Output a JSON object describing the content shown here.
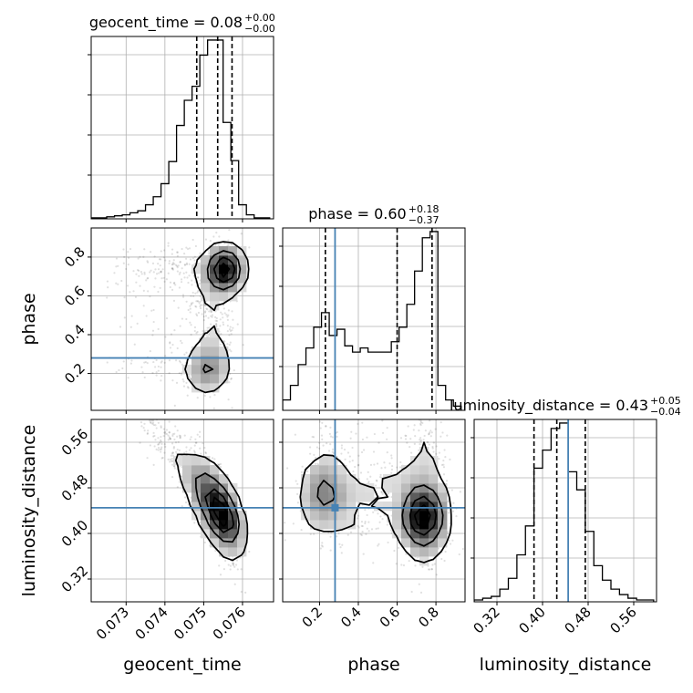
{
  "chart_data": {
    "type": "corner",
    "parameters": [
      "geocent_time",
      "phase",
      "luminosity_distance"
    ],
    "axis_labels": {
      "geocent_time": "geocent_time",
      "phase": "phase",
      "luminosity_distance": "luminosity_distance"
    },
    "ranges": {
      "geocent_time": [
        0.0721,
        0.0768
      ],
      "phase": [
        0.01,
        0.95
      ],
      "luminosity_distance": [
        0.28,
        0.6
      ]
    },
    "ticks": {
      "geocent_time": [
        0.073,
        0.074,
        0.075,
        0.076
      ],
      "phase": [
        0.2,
        0.4,
        0.6,
        0.8
      ],
      "luminosity_distance": [
        0.32,
        0.4,
        0.48,
        0.56
      ]
    },
    "tick_labels": {
      "geocent_time": [
        "0.073",
        "0.074",
        "0.075",
        "0.076"
      ],
      "phase": [
        "0.2",
        "0.4",
        "0.6",
        "0.8"
      ],
      "luminosity_distance": [
        "0.32",
        "0.40",
        "0.48",
        "0.56"
      ]
    },
    "titles": [
      {
        "param": "geocent_time",
        "base": "geocent_time = 0.08",
        "plus": "+0.00",
        "minus": "−0.00"
      },
      {
        "param": "phase",
        "base": "phase = 0.60",
        "plus": "+0.18",
        "minus": "−0.37"
      },
      {
        "param": "luminosity_distance",
        "base": "luminosity_distance = 0.43",
        "plus": "+0.05",
        "minus": "−0.04"
      }
    ],
    "quantiles": {
      "geocent_time": [
        0.07482,
        0.07536,
        0.07573
      ],
      "phase": [
        0.23,
        0.6,
        0.78
      ],
      "luminosity_distance": [
        0.385,
        0.425,
        0.475
      ]
    },
    "truths": {
      "phase": 0.28,
      "luminosity_distance": 0.445
    },
    "histograms": {
      "geocent_time": {
        "edges": [
          0.0721,
          0.0723,
          0.0725,
          0.0727,
          0.0729,
          0.0731,
          0.0733,
          0.0735,
          0.0737,
          0.0739,
          0.0741,
          0.0743,
          0.0745,
          0.0747,
          0.0749,
          0.0751,
          0.0753,
          0.0755,
          0.0757,
          0.0759,
          0.0761,
          0.0763,
          0.0765,
          0.0767
        ],
        "counts": [
          1,
          1,
          2,
          3,
          4,
          6,
          8,
          14,
          22,
          35,
          57,
          93,
          118,
          132,
          163,
          178,
          178,
          96,
          58,
          14,
          4,
          1,
          1
        ]
      },
      "phase": {
        "edges": [
          0.01,
          0.05,
          0.09,
          0.13,
          0.17,
          0.21,
          0.25,
          0.29,
          0.33,
          0.37,
          0.41,
          0.45,
          0.49,
          0.53,
          0.57,
          0.61,
          0.65,
          0.69,
          0.73,
          0.77,
          0.81,
          0.85,
          0.89,
          0.93
        ],
        "counts": [
          5,
          12,
          22,
          30,
          40,
          47,
          36,
          39,
          31,
          28,
          30,
          28,
          28,
          28,
          33,
          40,
          51,
          67,
          83,
          86,
          12,
          5,
          2
        ]
      },
      "luminosity_distance": {
        "edges": [
          0.28,
          0.295,
          0.31,
          0.325,
          0.34,
          0.355,
          0.37,
          0.385,
          0.4,
          0.415,
          0.43,
          0.445,
          0.46,
          0.475,
          0.49,
          0.505,
          0.52,
          0.535,
          0.55,
          0.565,
          0.58,
          0.595
        ],
        "counts": [
          1,
          2,
          3,
          7,
          13,
          26,
          42,
          74,
          84,
          96,
          99,
          72,
          62,
          39,
          20,
          12,
          7,
          4,
          2,
          1,
          1
        ]
      }
    },
    "contour_levels": [
      0.118,
      0.393,
      0.675,
      0.865
    ],
    "grid": true
  }
}
